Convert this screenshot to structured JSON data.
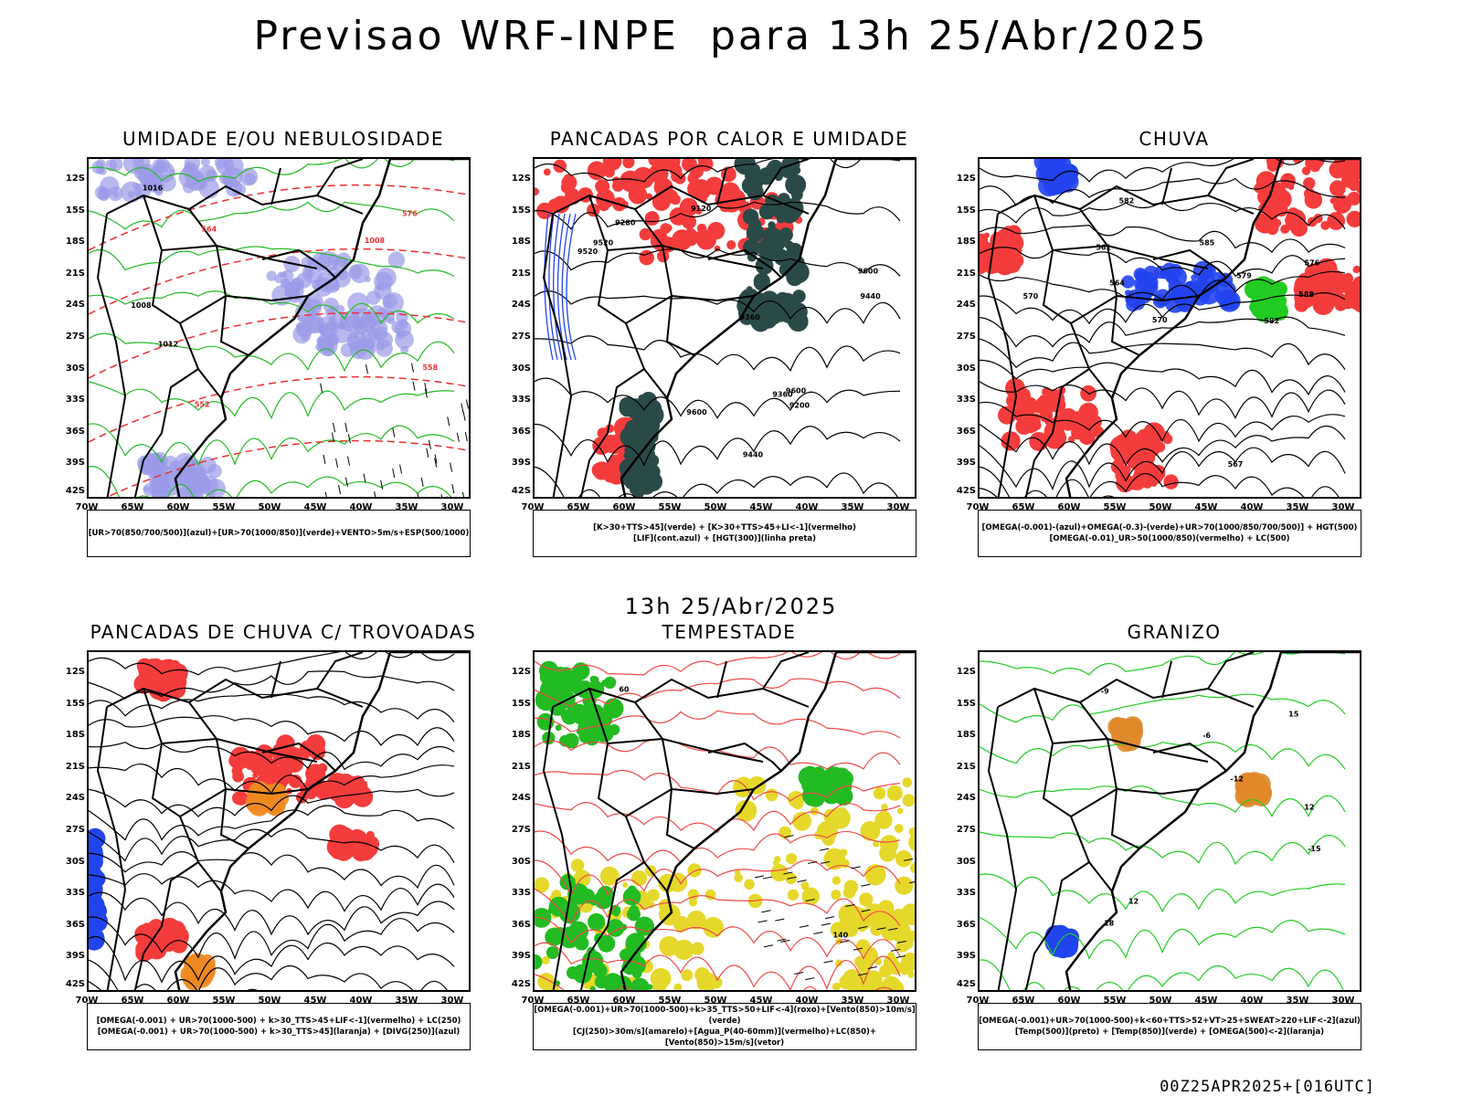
{
  "header": {
    "title": "Previsao WRF-INPE  para 13h 25/Abr/2025"
  },
  "mid_title": "13h 25/Abr/2025",
  "footer": "00Z25APR2025+[016UTC]",
  "axes": {
    "lat_labels": [
      "12S",
      "15S",
      "18S",
      "21S",
      "24S",
      "27S",
      "30S",
      "33S",
      "36S",
      "39S",
      "42S"
    ],
    "lon_labels": [
      "70W",
      "65W",
      "60W",
      "55W",
      "50W",
      "45W",
      "40W",
      "35W",
      "30W"
    ]
  },
  "panels": [
    {
      "title": "UMIDADE E/OU NEBULOSIDADE",
      "legend": [
        "[UR>70(850/700/500)](azul)+[UR>70(1000/850)](verde)+VENTO>5m/s+ESP(500/1000)"
      ],
      "contour_labels": [
        "1008",
        "1012",
        "1016",
        "1008",
        "576",
        "564",
        "558",
        "552"
      ],
      "colors": {
        "fill": "#9a9ae8",
        "contour": "#22bb22",
        "dash": "#e83030"
      }
    },
    {
      "title": "PANCADAS POR CALOR E UMIDADE",
      "legend": [
        "[K>30+TTS>45](verde) + [K>30+TTS>45+LI<-1](vermelho)",
        "[LIF](cont.azul) + [HGT(300)](linha preta)"
      ],
      "contour_labels": [
        "9600",
        "9600",
        "9520",
        "9440",
        "9360",
        "9280",
        "9200",
        "9120",
        "9360",
        "9520",
        "9440",
        "9600"
      ],
      "colors": {
        "fill": "#f53c3c",
        "fill2": "#2a4a48",
        "contour": "#2244ee"
      }
    },
    {
      "title": "CHUVA",
      "legend": [
        "[OMEGA(-0.001)-(azul)+OMEGA(-0.3)-(verde)+UR>70(1000/850/700/500)] + HGT(500)",
        "[OMEGA(-0.01)_UR>50(1000/850)(vermelho) + LC(500)"
      ],
      "contour_labels": [
        "582",
        "585",
        "582",
        "579",
        "576",
        "570",
        "564",
        "561",
        "567",
        "570",
        "588"
      ],
      "colors": {
        "fill": "#f53c3c",
        "blue": "#2244ee",
        "green": "#22cc22"
      }
    },
    {
      "title": "PANCADAS DE CHUVA C/ TROVOADAS",
      "legend": [
        "[OMEGA(-0.001) + UR>70(1000-500) + k>30_TTS>45+LIF<-1](vermelho) + LC(250)",
        "[OMEGA(-0.001) + UR>70(1000-500) + k>30_TTS>45](laranja) + [DIVG(250)](azul)"
      ],
      "contour_labels": [],
      "colors": {
        "fill": "#f53c3c",
        "orange": "#f08a20",
        "blue": "#2244ee"
      }
    },
    {
      "title": "TEMPESTADE",
      "legend": [
        "[OMEGA(-0.001)+UR>70(1000-500)+k>35_TTS>50+LIF<-4](roxo)+[Vento(850)>10m/s](verde)",
        "[CJ(250)>30m/s](amarelo)+[Agua_P(40-60mm)](vermelho)+LC(850)+[Vento(850)>15m/s](vetor)"
      ],
      "contour_labels": [
        "140",
        "60"
      ],
      "colors": {
        "yellow": "#e6d82a",
        "green": "#22bb22",
        "red": "#f04848"
      }
    },
    {
      "title": "GRANIZO",
      "legend": [
        "[OMEGA(-0.001)+UR>70(1000-500)+k<60+TTS>52+VT>25+SWEAT>220+LIF<-2](azul)",
        "[Temp(500)](preto) + [Temp(850)](verde) + [OMEGA(500)<-2](laranja)"
      ],
      "contour_labels": [
        "-12",
        "-15",
        "-9",
        "12",
        "15",
        "18",
        "-6",
        "12"
      ],
      "colors": {
        "green": "#22cc22",
        "orange": "#e0882a",
        "blue": "#2244ee"
      }
    }
  ]
}
